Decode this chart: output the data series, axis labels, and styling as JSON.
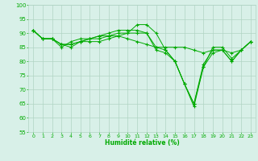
{
  "background_color": "#d8f0e8",
  "grid_color": "#b0d4c4",
  "line_color": "#00aa00",
  "marker_color": "#00aa00",
  "xlabel": "Humidité relative (%)",
  "xlabel_color": "#00aa00",
  "tick_color": "#00aa00",
  "ylim": [
    55,
    100
  ],
  "yticks": [
    55,
    60,
    65,
    70,
    75,
    80,
    85,
    90,
    95,
    100
  ],
  "xlim": [
    -0.5,
    23.5
  ],
  "xticks": [
    0,
    1,
    2,
    3,
    4,
    5,
    6,
    7,
    8,
    9,
    10,
    11,
    12,
    13,
    14,
    15,
    16,
    17,
    18,
    19,
    20,
    21,
    22,
    23
  ],
  "series": [
    [
      91,
      88,
      88,
      86,
      85,
      87,
      88,
      89,
      89,
      90,
      90,
      93,
      93,
      90,
      84,
      80,
      72,
      64,
      78,
      83,
      84,
      80,
      84,
      87
    ],
    [
      91,
      88,
      88,
      85,
      87,
      88,
      88,
      89,
      90,
      91,
      91,
      91,
      90,
      84,
      83,
      80,
      72,
      65,
      78,
      85,
      85,
      81,
      84,
      87
    ],
    [
      91,
      88,
      88,
      86,
      86,
      87,
      88,
      88,
      89,
      89,
      90,
      90,
      90,
      85,
      84,
      80,
      72,
      65,
      79,
      84,
      84,
      80,
      84,
      87
    ],
    [
      91,
      88,
      88,
      86,
      86,
      87,
      87,
      87,
      88,
      89,
      88,
      87,
      86,
      85,
      85,
      85,
      85,
      84,
      83,
      84,
      84,
      83,
      84,
      87
    ]
  ]
}
